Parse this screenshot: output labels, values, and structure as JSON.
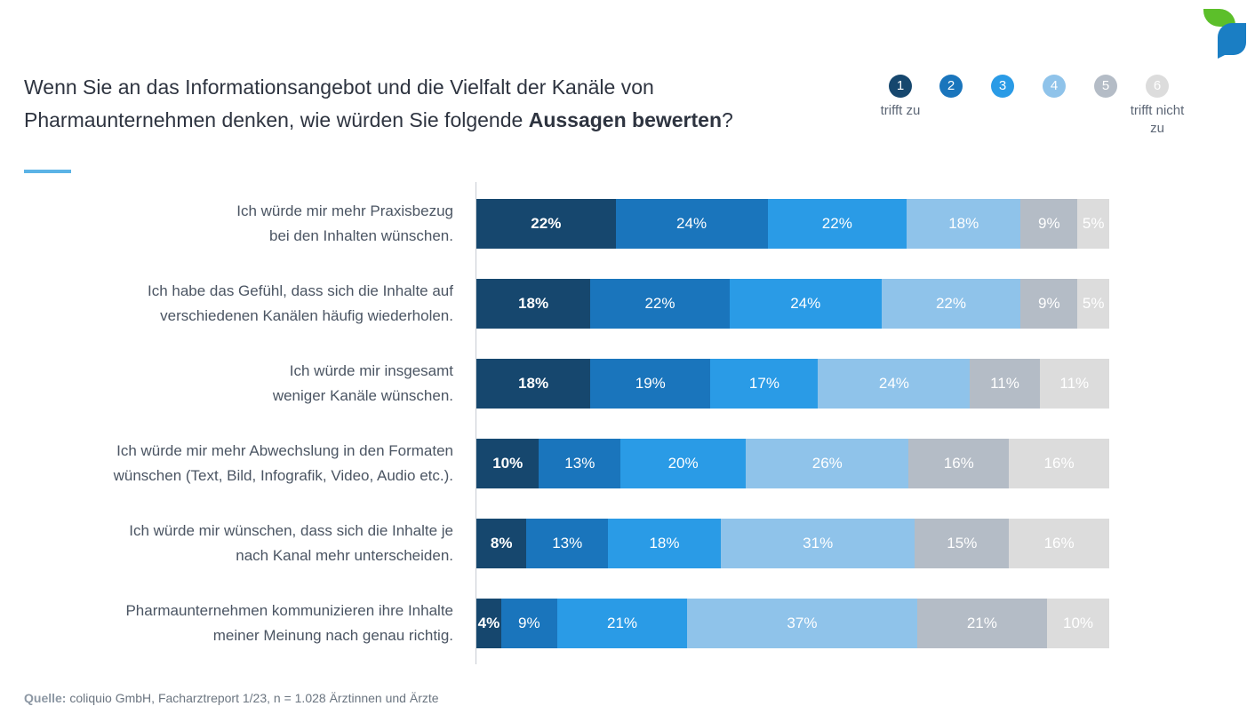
{
  "title": {
    "part1": "Wenn Sie an das Informationsangebot und die Vielfalt der Kanäle von Pharmaunternehmen denken, wie würden Sie folgende ",
    "bold": "Aussagen bewerten",
    "end": "?"
  },
  "scale": {
    "items": [
      {
        "num": "1",
        "color": "#16476e",
        "text_color": "#ffffff"
      },
      {
        "num": "2",
        "color": "#1a75bc",
        "text_color": "#ffffff"
      },
      {
        "num": "3",
        "color": "#2a9be6",
        "text_color": "#ffffff"
      },
      {
        "num": "4",
        "color": "#8fc3ea",
        "text_color": "#ffffff"
      },
      {
        "num": "5",
        "color": "#b4bcc6",
        "text_color": "#ffffff"
      },
      {
        "num": "6",
        "color": "#dcdcdc",
        "text_color": "#ffffff"
      }
    ],
    "left_caption": "trifft zu",
    "right_caption": "trifft nicht zu"
  },
  "chart_data": {
    "type": "bar",
    "orientation": "horizontal-stacked-100",
    "categories": [
      [
        "Ich würde mir mehr Praxisbezug",
        "bei den Inhalten wünschen."
      ],
      [
        "Ich habe das Gefühl, dass sich die Inhalte auf",
        "verschiedenen Kanälen häufig wiederholen."
      ],
      [
        "Ich würde mir insgesamt",
        "weniger Kanäle wünschen."
      ],
      [
        "Ich würde mir mehr Abwechslung in den Formaten",
        "wünschen (Text, Bild, Infografik, Video, Audio etc.)."
      ],
      [
        "Ich würde mir wünschen, dass sich die Inhalte je",
        "nach Kanal mehr unterscheiden."
      ],
      [
        "Pharmaunternehmen kommunizieren ihre Inhalte",
        "meiner Meinung nach genau richtig."
      ]
    ],
    "series": [
      {
        "name": "1",
        "color": "#16476e",
        "label_color": "#ffffff",
        "values": [
          22,
          18,
          18,
          10,
          8,
          4
        ]
      },
      {
        "name": "2",
        "color": "#1a75bc",
        "label_color": "#ffffff",
        "values": [
          24,
          22,
          19,
          13,
          13,
          9
        ]
      },
      {
        "name": "3",
        "color": "#2a9be6",
        "label_color": "#ffffff",
        "values": [
          22,
          24,
          17,
          20,
          18,
          21
        ]
      },
      {
        "name": "4",
        "color": "#8fc3ea",
        "label_color": "#ffffff",
        "values": [
          18,
          22,
          24,
          26,
          31,
          37
        ]
      },
      {
        "name": "5",
        "color": "#b4bcc6",
        "label_color": "#ffffff",
        "values": [
          9,
          9,
          11,
          16,
          15,
          21
        ]
      },
      {
        "name": "6",
        "color": "#dcdcdc",
        "label_color": "#ffffff",
        "values": [
          5,
          5,
          11,
          16,
          16,
          10
        ]
      }
    ],
    "unit": "%"
  },
  "source": {
    "label": "Quelle:",
    "text": " coliquio GmbH, Facharztreport 1/23, n = 1.028 Ärztinnen und Ärzte"
  }
}
